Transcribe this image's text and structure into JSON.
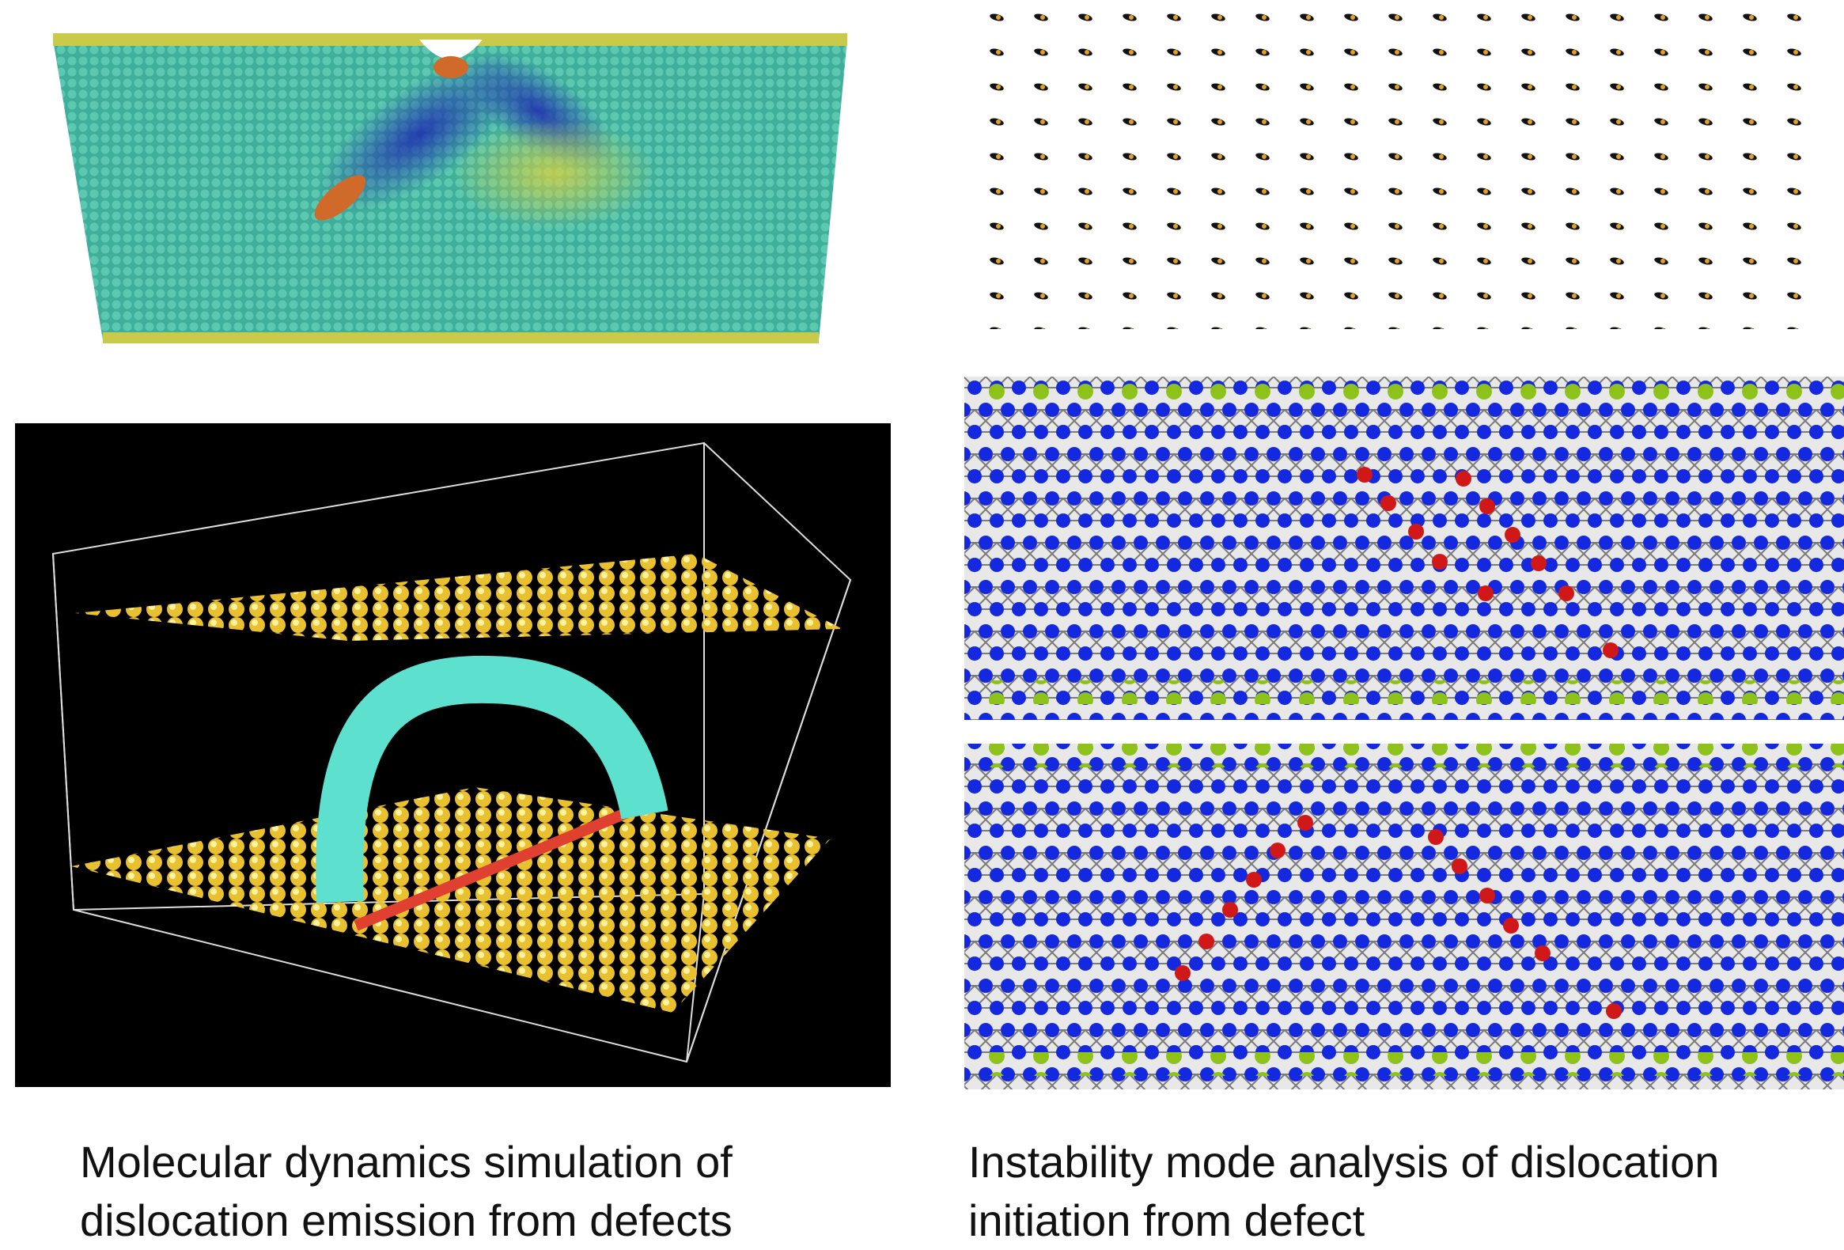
{
  "left_caption": {
    "lines": [
      "Molecular dynamics simulation of",
      "dislocation emission from defects"
    ]
  },
  "right_caption": {
    "lines": [
      "Instability mode analysis of dislocation",
      "initiation from defect"
    ]
  }
}
